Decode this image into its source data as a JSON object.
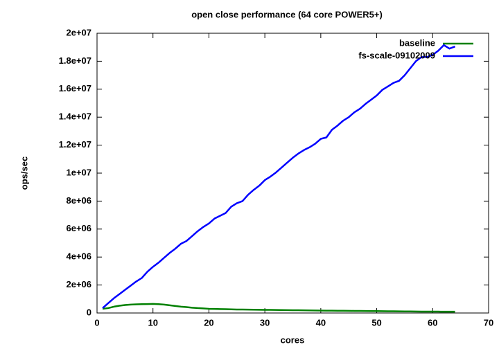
{
  "chart_data": {
    "type": "line",
    "title": "open close performance (64 core POWER5+)",
    "x_label": "cores",
    "y_label": "ops/sec",
    "x": [
      1,
      2,
      3,
      4,
      5,
      6,
      7,
      8,
      9,
      10,
      11,
      12,
      13,
      14,
      15,
      16,
      17,
      18,
      19,
      20,
      21,
      22,
      23,
      24,
      25,
      26,
      27,
      28,
      29,
      30,
      31,
      32,
      33,
      34,
      35,
      36,
      37,
      38,
      39,
      40,
      41,
      42,
      43,
      44,
      45,
      46,
      47,
      48,
      49,
      50,
      51,
      52,
      53,
      54,
      55,
      56,
      57,
      58,
      59,
      60,
      61,
      62,
      63,
      64
    ],
    "series": [
      {
        "name": "baseline",
        "color": "#008000",
        "values": [
          300000,
          350000,
          450000,
          520000,
          570000,
          600000,
          620000,
          630000,
          640000,
          650000,
          630000,
          600000,
          550000,
          500000,
          450000,
          420000,
          380000,
          350000,
          330000,
          300000,
          290000,
          280000,
          270000,
          260000,
          250000,
          245000,
          240000,
          235000,
          230000,
          225000,
          220000,
          215000,
          210000,
          205000,
          200000,
          195000,
          190000,
          185000,
          180000,
          175000,
          170000,
          166000,
          162000,
          158000,
          154000,
          150000,
          146000,
          142000,
          138000,
          134000,
          130000,
          126000,
          122000,
          118000,
          114000,
          110000,
          106000,
          102000,
          100000,
          98000,
          96000,
          94000,
          92000,
          90000
        ]
      },
      {
        "name": "fs-scale-09102009",
        "color": "#0000ff",
        "values": [
          350000,
          700000,
          1050000,
          1350000,
          1650000,
          1950000,
          2250000,
          2500000,
          2950000,
          3300000,
          3600000,
          3950000,
          4300000,
          4600000,
          4950000,
          5150000,
          5500000,
          5850000,
          6150000,
          6400000,
          6750000,
          6950000,
          7150000,
          7600000,
          7850000,
          8000000,
          8450000,
          8800000,
          9100000,
          9500000,
          9750000,
          10050000,
          10400000,
          10750000,
          11100000,
          11400000,
          11650000,
          11850000,
          12100000,
          12450000,
          12550000,
          13100000,
          13400000,
          13750000,
          14000000,
          14350000,
          14600000,
          14950000,
          15250000,
          15550000,
          15950000,
          16200000,
          16450000,
          16600000,
          17000000,
          17500000,
          18000000,
          18300000,
          18300000,
          18450000,
          18750000,
          19150000,
          18900000,
          19050000
        ]
      }
    ],
    "xlim": [
      0,
      70
    ],
    "xticks": [
      0,
      10,
      20,
      30,
      40,
      50,
      60,
      70
    ],
    "ylim": [
      0,
      20000000
    ],
    "yticks": [
      0,
      {
        "value": 2000000,
        "label": "2e+06"
      },
      {
        "value": 4000000,
        "label": "4e+06"
      },
      {
        "value": 6000000,
        "label": "6e+06"
      },
      {
        "value": 8000000,
        "label": "8e+06"
      },
      {
        "value": 10000000,
        "label": "1e+07"
      },
      {
        "value": 12000000,
        "label": "1.2e+07"
      },
      {
        "value": 14000000,
        "label": "1.4e+07"
      },
      {
        "value": 16000000,
        "label": "1.6e+07"
      },
      {
        "value": 18000000,
        "label": "1.8e+07"
      },
      {
        "value": 20000000,
        "label": "2e+07"
      }
    ],
    "legend": "top-right"
  }
}
